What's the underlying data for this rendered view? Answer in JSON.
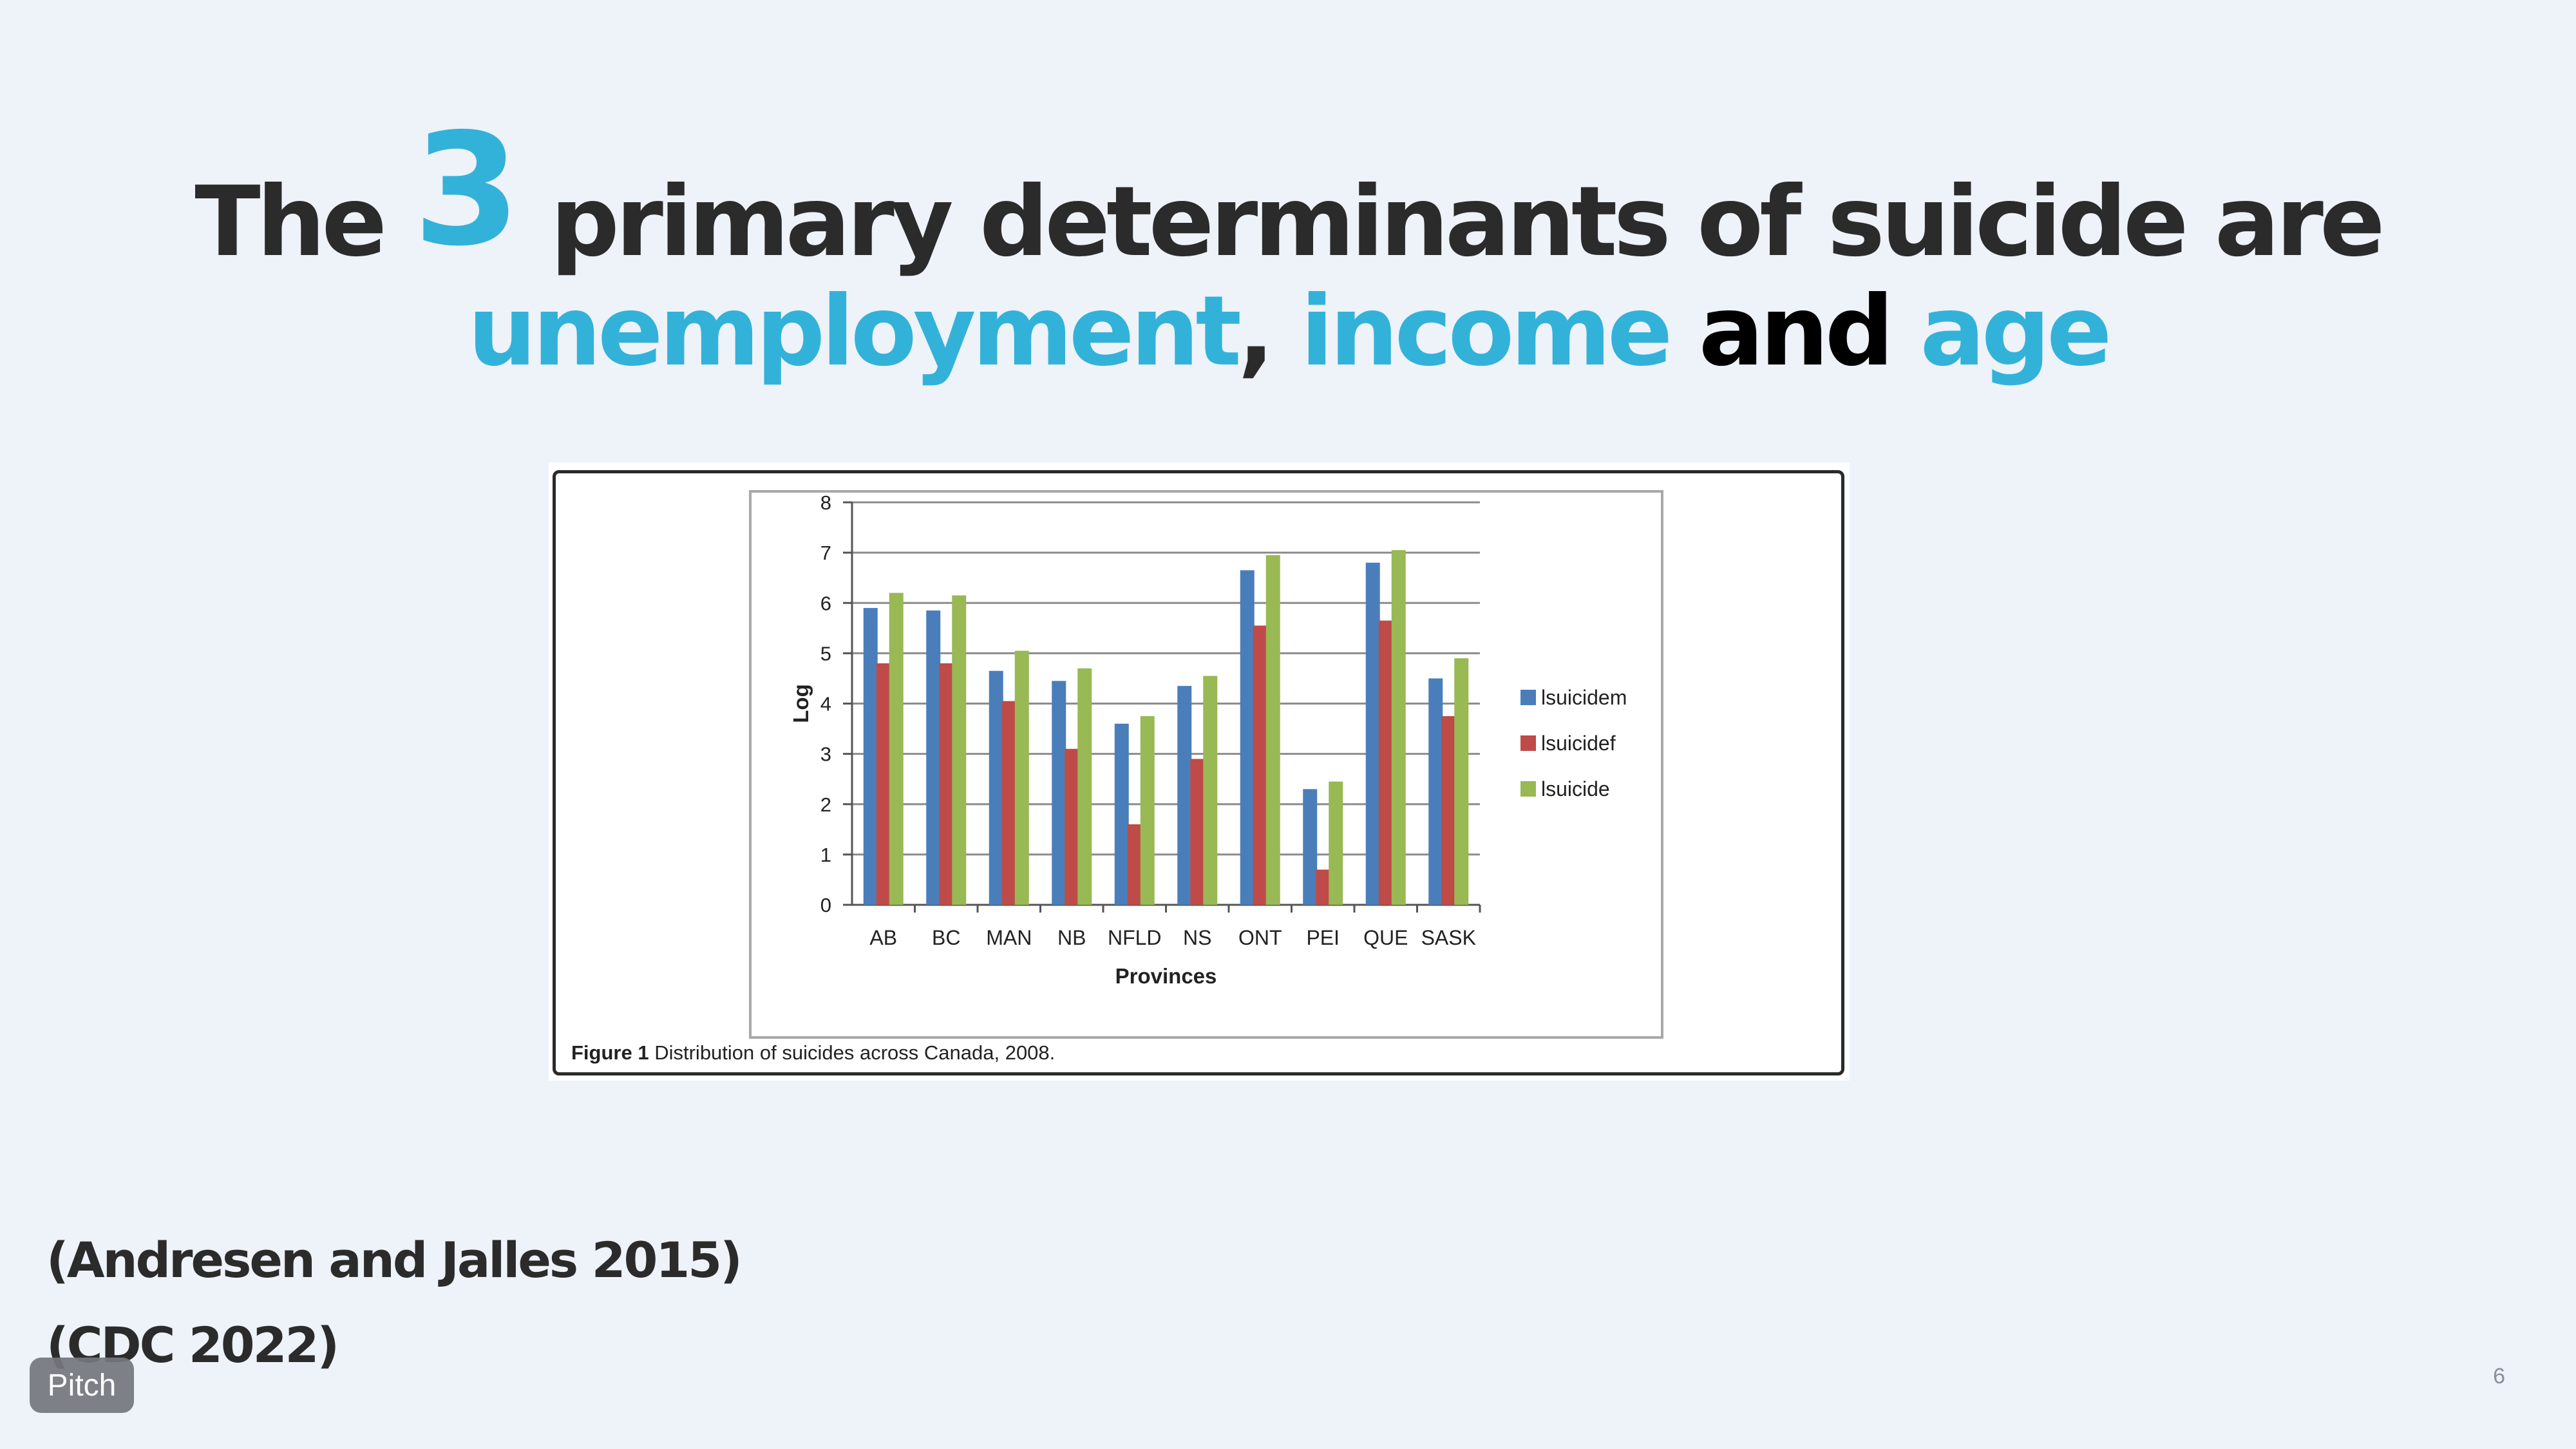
{
  "title": {
    "prefix": "The",
    "number": "3",
    "rest": "primary determinants of suicide are",
    "term1": "unemployment",
    "comma": ",",
    "term2": "income",
    "conj": "and",
    "term3": "age"
  },
  "figure": {
    "caption_label": "Figure 1",
    "caption_text": "Distribution of suicides across Canada, 2008."
  },
  "chart_data": {
    "type": "bar",
    "title": "",
    "xlabel": "Provinces",
    "ylabel": "Log",
    "ylim": [
      0,
      8
    ],
    "yticks": [
      "0",
      "1",
      "2",
      "3",
      "4",
      "5",
      "6",
      "7",
      "8"
    ],
    "grid": true,
    "legend_position": "right",
    "categories": [
      "AB",
      "BC",
      "MAN",
      "NB",
      "NFLD",
      "NS",
      "ONT",
      "PEI",
      "QUE",
      "SASK"
    ],
    "series": [
      {
        "name": "lsuicidem",
        "color": "#4a7ebb",
        "values": [
          5.9,
          5.85,
          4.65,
          4.45,
          3.6,
          4.35,
          6.65,
          2.3,
          6.8,
          4.5
        ]
      },
      {
        "name": "lsuicidef",
        "color": "#be4b48",
        "values": [
          4.8,
          4.8,
          4.05,
          3.1,
          1.6,
          2.9,
          5.55,
          0.7,
          5.65,
          3.75
        ]
      },
      {
        "name": "lsuicide",
        "color": "#98b954",
        "values": [
          6.2,
          6.15,
          5.05,
          4.7,
          3.75,
          4.55,
          6.95,
          2.45,
          7.05,
          4.9
        ]
      }
    ]
  },
  "citations": [
    "(Andresen and Jalles 2015)",
    "(CDC 2022)"
  ],
  "badge": "Pitch",
  "page_number": "6",
  "colors": {
    "accent": "#33b2d9",
    "background": "#eef2f9",
    "text": "#2b2b2b"
  }
}
